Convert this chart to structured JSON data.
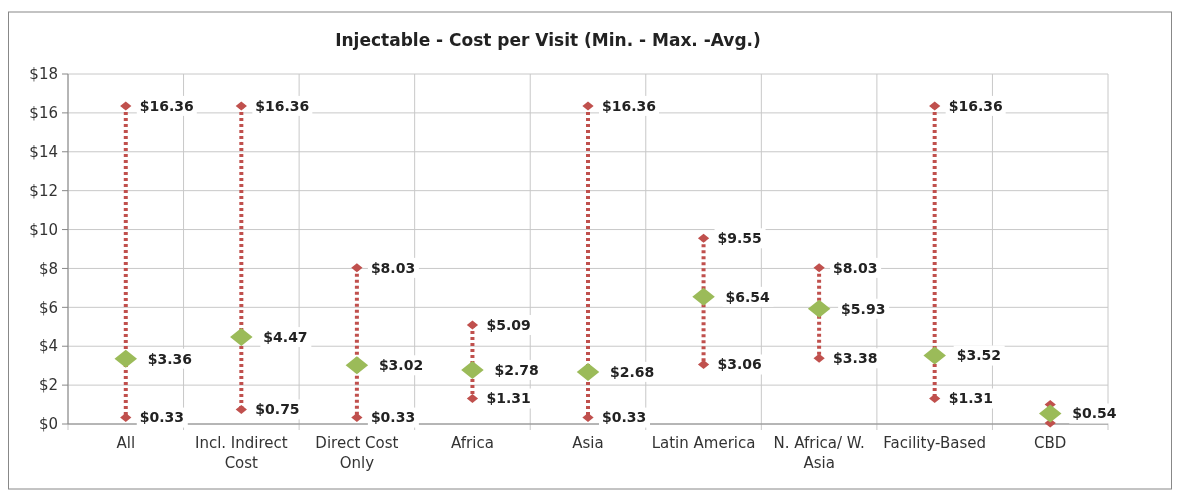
{
  "chart_data": {
    "type": "scatter",
    "title": "Injectable - Cost per Visit (Min. - Max. -Avg.)",
    "categories": [
      "All",
      "Incl. Indirect Cost",
      "Direct Cost Only",
      "Africa",
      "Asia",
      "Latin America",
      "N. Africa/ W. Asia",
      "Facility-Based",
      "CBD"
    ],
    "series": [
      {
        "color": "#c0504d",
        "marker": "diamond",
        "values": [
          16.36,
          16.36,
          8.03,
          5.09,
          16.36,
          9.55,
          8.03,
          16.36,
          1.0
        ],
        "value_labels": [
          "$16.36",
          "$16.36",
          "$8.03",
          "$5.09",
          "$16.36",
          "$9.55",
          "$8.03",
          "$16.36",
          null
        ]
      },
      {
        "color": "#c0504d",
        "marker": "diamond",
        "values": [
          0.33,
          0.75,
          0.33,
          1.31,
          0.33,
          3.06,
          3.38,
          1.31,
          0.05
        ],
        "value_labels": [
          "$0.33",
          "$0.75",
          "$0.33",
          "$1.31",
          "$0.33",
          "$3.06",
          "$3.38",
          "$1.31",
          null
        ]
      },
      {
        "color": "#9bbb59",
        "marker": "diamond",
        "values": [
          3.36,
          4.47,
          3.02,
          2.78,
          2.68,
          6.54,
          5.93,
          3.52,
          0.54
        ],
        "value_labels": [
          "$3.36",
          "$4.47",
          "$3.02",
          "$2.78",
          "$2.68",
          "$6.54",
          "$5.93",
          "$3.52",
          "$0.54"
        ]
      }
    ],
    "ylim": [
      0,
      18
    ],
    "yticks": [
      {
        "value": 0,
        "label": "$0"
      },
      {
        "value": 2,
        "label": "$2"
      },
      {
        "value": 4,
        "label": "$4"
      },
      {
        "value": 6,
        "label": "$6"
      },
      {
        "value": 8,
        "label": "$8"
      },
      {
        "value": 10,
        "label": "$10"
      },
      {
        "value": 12,
        "label": "$12"
      },
      {
        "value": 14,
        "label": "$14"
      },
      {
        "value": 16,
        "label": "$16"
      },
      {
        "value": 18,
        "label": "$18"
      }
    ],
    "grid": true,
    "line_style": "dotted"
  }
}
